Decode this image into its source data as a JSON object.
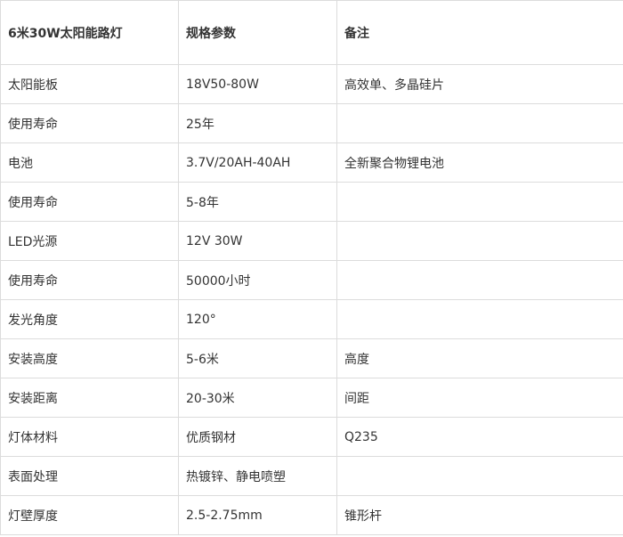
{
  "table": {
    "header": [
      "6米30W太阳能路灯",
      "规格参数",
      "备注"
    ],
    "rows": [
      [
        "太阳能板",
        "18V50-80W",
        "高效单、多晶硅片"
      ],
      [
        "使用寿命",
        "25年"
      ],
      [
        "电池",
        "3.7V/20AH-40AH",
        "全新聚合物锂电池"
      ],
      [
        "使用寿命",
        "5-8年"
      ],
      [
        "LED光源",
        "12V 30W"
      ],
      [
        "使用寿命",
        "50000小时"
      ],
      [
        "发光角度",
        "120°"
      ],
      [
        "安装高度",
        "5-6米",
        "高度"
      ],
      [
        "安装距离",
        "20-30米",
        "间距"
      ],
      [
        "灯体材料",
        "优质钢材",
        "Q235"
      ],
      [
        "表面处理",
        "热镀锌、静电喷塑"
      ],
      [
        "灯壁厚度",
        "2.5-2.75mm",
        "锥形杆"
      ]
    ]
  }
}
